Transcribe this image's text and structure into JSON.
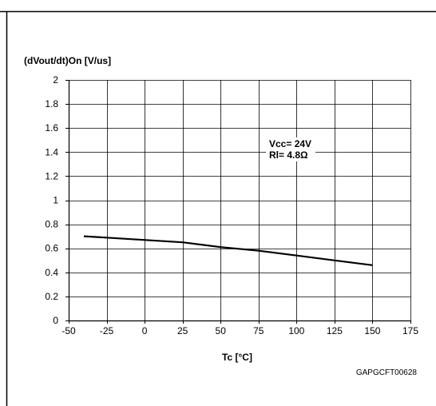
{
  "chart_data": {
    "type": "line",
    "ylabel": "(dVout/dt)On [V/us]",
    "xlabel": "Tc [°C]",
    "xlim": [
      -50,
      175
    ],
    "ylim": [
      0,
      2
    ],
    "xticks": [
      -50,
      -25,
      0,
      25,
      50,
      75,
      100,
      125,
      150,
      175
    ],
    "yticks": [
      0,
      0.2,
      0.4,
      0.6,
      0.8,
      1,
      1.2,
      1.4,
      1.6,
      1.8,
      2
    ],
    "xtick_labels": [
      "-50",
      "-25",
      "0",
      "25",
      "50",
      "75",
      "100",
      "125",
      "150",
      "175"
    ],
    "ytick_labels": [
      "0",
      "0.2",
      "0.4",
      "0.6",
      "0.8",
      "1",
      "1.2",
      "1.4",
      "1.6",
      "1.8",
      "2"
    ],
    "grid": true,
    "series": [
      {
        "x": [
          -40,
          25,
          50,
          75,
          100,
          125,
          150
        ],
        "y": [
          0.7,
          0.65,
          0.61,
          0.58,
          0.54,
          0.5,
          0.46
        ]
      }
    ],
    "annotations": [
      "Vcc= 24V",
      "Rl= 4.8Ω"
    ],
    "figure_code": "GAPGCFT00628"
  }
}
